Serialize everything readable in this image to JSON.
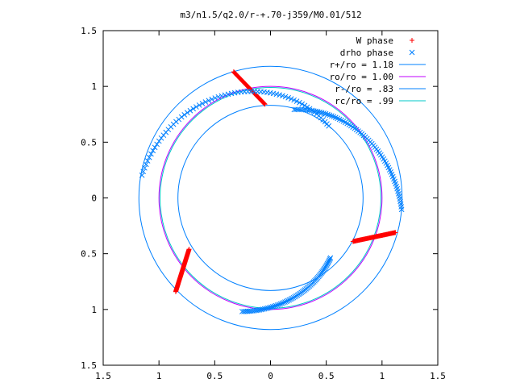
{
  "chart_data": {
    "type": "scatter",
    "title": "m3/n1.5/q2.0/r-+.70-j359/M0.01/512",
    "xlim": [
      -1.5,
      1.5
    ],
    "ylim": [
      -1.5,
      1.5
    ],
    "x_tick_values": [
      -1.5,
      -1,
      -0.5,
      0,
      0.5,
      1,
      1.5
    ],
    "y_tick_values": [
      -1.5,
      -1,
      -0.5,
      0,
      0.5,
      1,
      1.5
    ],
    "x_tick_labels": [
      "1.5",
      "1",
      "0.5",
      "0",
      "0.5",
      "1",
      "1.5"
    ],
    "y_tick_labels": [
      "1.5",
      "1",
      "0.5",
      "0",
      "0.5",
      "1",
      "1.5"
    ],
    "grid": false,
    "legend_position": "top-right",
    "colors": {
      "w_phase": "#ff0000",
      "drho_phase": "#0080ff",
      "r_plus": "#0080ff",
      "r_o": "#c000ff",
      "r_minus": "#0080ff",
      "r_c": "#00c8c8"
    },
    "series": [
      {
        "name": "W phase",
        "kind": "points",
        "marker": "plus",
        "segments": [
          {
            "from": [
              -0.33,
              1.13
            ],
            "to": [
              -0.05,
              0.84
            ]
          },
          {
            "from": [
              -0.73,
              -0.46
            ],
            "to": [
              -0.85,
              -0.84
            ]
          },
          {
            "from": [
              0.74,
              -0.39
            ],
            "to": [
              1.12,
              -0.31
            ]
          }
        ]
      },
      {
        "name": "drho phase",
        "kind": "points",
        "marker": "cross",
        "segments": [
          {
            "radius": [
              0.83,
              1.17
            ],
            "angle_deg": [
              51,
              170
            ]
          },
          {
            "radius": [
              0.82,
              1.18
            ],
            "angle_deg": [
              75,
              -5
            ]
          },
          {
            "radius": [
              1.05,
              0.76
            ],
            "angle_deg": [
              -104,
              -45
            ]
          }
        ]
      },
      {
        "name": "r+/ro = 1.18",
        "kind": "circle",
        "radius": 1.18
      },
      {
        "name": "ro/ro = 1.00",
        "kind": "circle",
        "radius": 1.0
      },
      {
        "name": "r-/ro = .83",
        "kind": "circle",
        "radius": 0.83
      },
      {
        "name": "rc/ro = .99",
        "kind": "circle",
        "radius": 0.99
      }
    ]
  }
}
